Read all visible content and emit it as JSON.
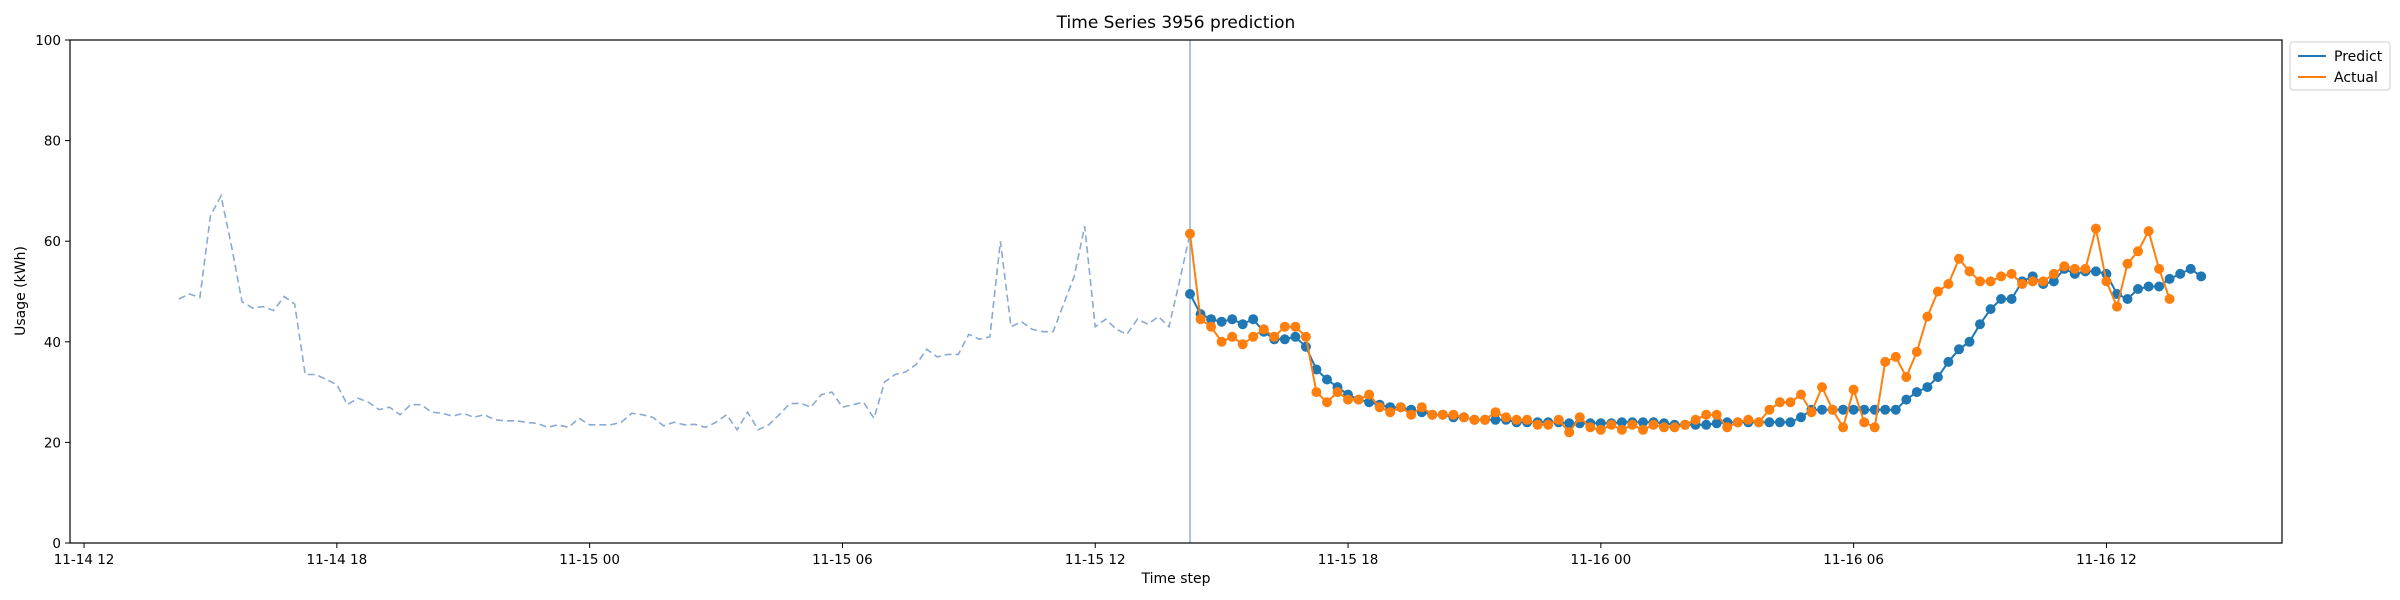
{
  "chart_data": {
    "type": "line",
    "title": "Time Series 3956 prediction",
    "xlabel": "Time step",
    "ylabel": "Usage (kWh)",
    "ylim": [
      0,
      100
    ],
    "yticks": [
      0,
      20,
      40,
      60,
      80,
      100
    ],
    "xlim": [
      "2024-11-14 11:40",
      "2024-11-16 16:10"
    ],
    "xticks": [
      {
        "t": "2024-11-14 12:00",
        "label": "11-14 12"
      },
      {
        "t": "2024-11-14 18:00",
        "label": "11-14 18"
      },
      {
        "t": "2024-11-15 00:00",
        "label": "11-15 00"
      },
      {
        "t": "2024-11-15 06:00",
        "label": "11-15 06"
      },
      {
        "t": "2024-11-15 12:00",
        "label": "11-15 12"
      },
      {
        "t": "2024-11-15 18:00",
        "label": "11-15 18"
      },
      {
        "t": "2024-11-16 00:00",
        "label": "11-16 00"
      },
      {
        "t": "2024-11-16 06:00",
        "label": "11-16 06"
      },
      {
        "t": "2024-11-16 12:00",
        "label": "11-16 12"
      }
    ],
    "grid": false,
    "legend_position": "top-right, outside plot",
    "divider_time": "2024-11-15 14:15",
    "colors": {
      "predict": "#1f77b4",
      "actual": "#ff7f0e",
      "history": "#8aa9d3",
      "divider": "#8aa9d3"
    },
    "history": {
      "start": "2024-11-14 14:15",
      "interval_minutes": 15,
      "style": "dashed",
      "values": [
        48.5,
        49.5,
        48.8,
        65.0,
        69.0,
        59.0,
        48.0,
        46.7,
        47.0,
        46.2,
        49.0,
        47.5,
        33.5,
        33.5,
        32.5,
        31.5,
        27.5,
        28.8,
        28.0,
        26.5,
        27.0,
        25.5,
        27.5,
        27.5,
        26.0,
        25.8,
        25.2,
        25.8,
        25.0,
        25.5,
        24.5,
        24.3,
        24.3,
        24.0,
        23.8,
        23.0,
        23.5,
        23.0,
        24.8,
        23.5,
        23.5,
        23.5,
        24.0,
        25.8,
        25.5,
        25.0,
        23.3,
        24.0,
        23.5,
        23.6,
        23.0,
        24.0,
        25.5,
        22.5,
        26.0,
        22.5,
        23.5,
        25.5,
        27.7,
        27.8,
        27.0,
        29.5,
        30.0,
        27.0,
        27.5,
        28.0,
        24.8,
        32.0,
        33.5,
        34.0,
        35.5,
        38.5,
        37.0,
        37.5,
        37.5,
        41.5,
        40.5,
        41.0,
        60.0,
        43.0,
        44.0,
        42.5,
        42.0,
        42.0,
        47.5,
        53.0,
        63.0,
        43.0,
        44.5,
        42.5,
        41.5,
        44.5,
        43.5,
        45.0,
        43.0,
        52.0,
        61.5
      ]
    },
    "forecast_start": "2024-11-15 14:15",
    "forecast_interval_minutes": 15,
    "series": [
      {
        "name": "Predict",
        "values": [
          49.5,
          45.5,
          44.5,
          44.0,
          44.5,
          43.5,
          44.5,
          42.0,
          40.5,
          40.5,
          41.0,
          39.0,
          34.5,
          32.5,
          31.0,
          29.5,
          28.5,
          28.0,
          27.5,
          27.0,
          27.0,
          26.5,
          26.0,
          25.5,
          25.5,
          25.0,
          25.0,
          24.5,
          24.5,
          24.5,
          24.5,
          24.0,
          24.0,
          24.0,
          24.0,
          24.0,
          23.8,
          23.8,
          23.8,
          23.8,
          23.8,
          24.0,
          24.0,
          24.0,
          24.0,
          23.8,
          23.5,
          23.5,
          23.5,
          23.5,
          23.8,
          24.0,
          24.0,
          24.0,
          24.0,
          24.0,
          24.0,
          24.0,
          25.0,
          26.5,
          26.5,
          26.5,
          26.5,
          26.5,
          26.5,
          26.5,
          26.5,
          26.5,
          28.5,
          30.0,
          31.0,
          33.0,
          36.0,
          38.5,
          40.0,
          43.5,
          46.5,
          48.5,
          48.5,
          52.0,
          53.0,
          51.5,
          52.0,
          54.5,
          53.5,
          54.0,
          54.0,
          53.5,
          49.5,
          48.5,
          50.5,
          51.0,
          51.0,
          52.5,
          53.5,
          54.5,
          53.0
        ]
      },
      {
        "name": "Actual",
        "values": [
          61.5,
          44.5,
          43.0,
          40.0,
          41.0,
          39.5,
          41.0,
          42.5,
          41.0,
          43.0,
          43.0,
          41.0,
          30.0,
          28.0,
          30.0,
          28.5,
          28.5,
          29.5,
          27.0,
          26.0,
          27.0,
          25.5,
          27.0,
          25.5,
          25.5,
          25.5,
          25.0,
          24.5,
          24.5,
          26.0,
          25.0,
          24.5,
          24.5,
          23.5,
          23.5,
          24.5,
          22.0,
          25.0,
          23.0,
          22.5,
          23.5,
          22.5,
          23.5,
          22.5,
          23.5,
          23.0,
          23.0,
          23.5,
          24.5,
          25.5,
          25.5,
          23.0,
          24.0,
          24.5,
          24.0,
          26.5,
          28.0,
          28.0,
          29.5,
          26.0,
          31.0,
          26.5,
          23.0,
          30.5,
          24.0,
          23.0,
          36.0,
          37.0,
          33.0,
          38.0,
          45.0,
          50.0,
          51.5,
          56.5,
          54.0,
          52.0,
          52.0,
          53.0,
          53.5,
          51.5,
          52.0,
          52.0,
          53.5,
          55.0,
          54.5,
          54.5,
          62.5,
          52.0,
          47.0,
          55.5,
          58.0,
          62.0,
          54.5,
          48.5
        ]
      }
    ]
  }
}
